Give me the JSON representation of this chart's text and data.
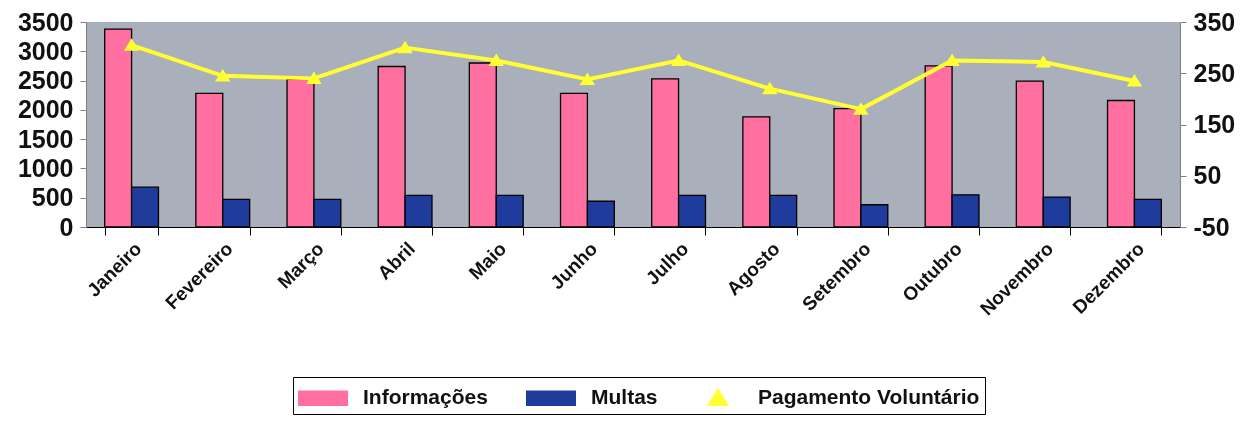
{
  "chart_data": {
    "type": "bar",
    "categories": [
      "Janeiro",
      "Fevereiro",
      "Março",
      "Abril",
      "Maio",
      "Junho",
      "Julho",
      "Agosto",
      "Setembro",
      "Outubro",
      "Novembro",
      "Dezembro"
    ],
    "series": [
      {
        "name": "Informações",
        "color": "#ff6f9f",
        "values": [
          3380,
          2280,
          2520,
          2740,
          2800,
          2280,
          2530,
          1880,
          2020,
          2750,
          2490,
          2160
        ]
      },
      {
        "name": "Multas",
        "color": "#1f3c9c",
        "values": [
          680,
          470,
          470,
          540,
          540,
          440,
          540,
          540,
          380,
          550,
          510,
          470
        ]
      },
      {
        "name": "Pagamento Voluntário",
        "type": "line",
        "axis": "y2",
        "color": "#ffff33",
        "marker": "triangle",
        "values": [
          305,
          245,
          240,
          300,
          275,
          238,
          275,
          220,
          180,
          275,
          272,
          235
        ]
      }
    ],
    "ylim": [
      0,
      3500
    ],
    "yticks": [
      0,
      500,
      1000,
      1500,
      2000,
      2500,
      3000,
      3500
    ],
    "y2lim": [
      -50,
      350
    ],
    "y2ticks": [
      -50,
      50,
      150,
      250,
      350
    ],
    "grid": false,
    "legend": "bottom"
  }
}
